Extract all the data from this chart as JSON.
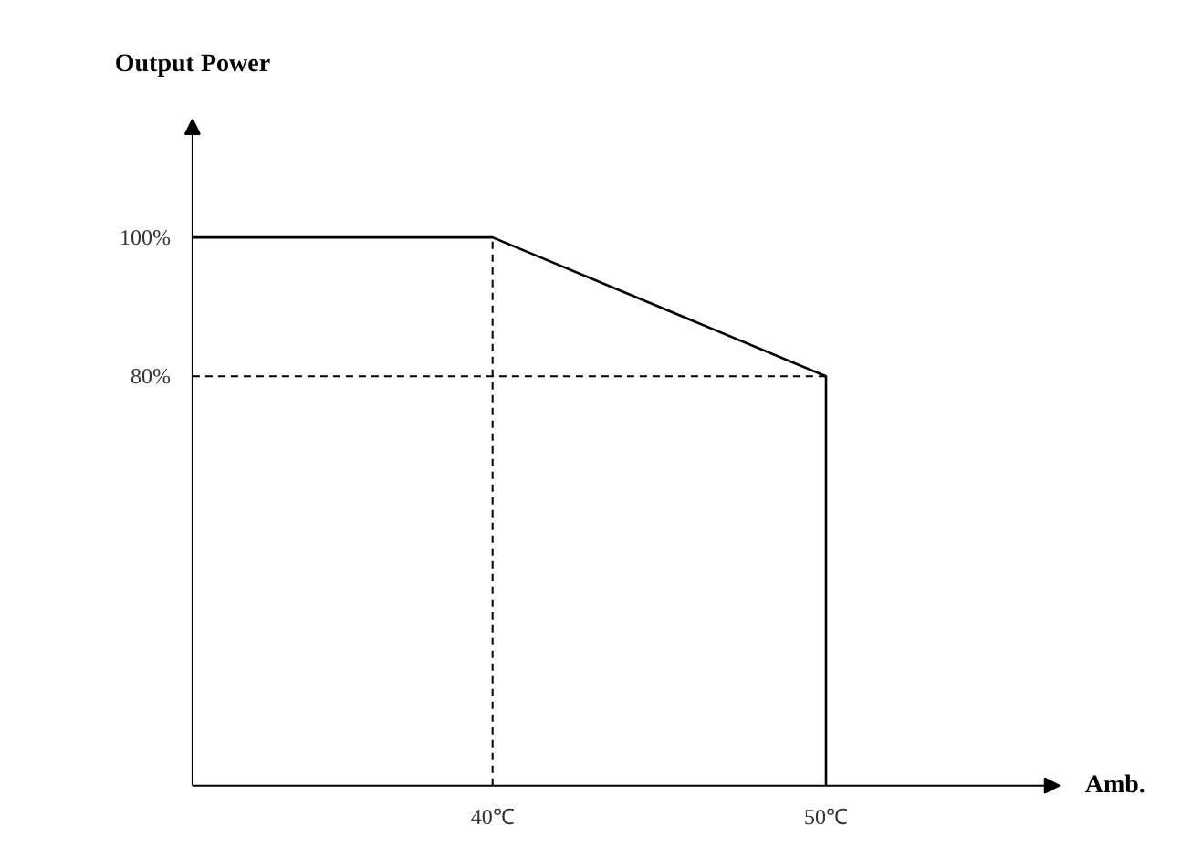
{
  "chart_data": {
    "type": "line",
    "xlabel": "Amb.",
    "ylabel": "Output Power",
    "x": [
      31,
      40,
      50,
      50
    ],
    "series": [
      {
        "color": "#000000",
        "values": [
          100,
          100,
          80,
          21
        ]
      }
    ],
    "xlim": [
      31,
      57
    ],
    "ylim": [
      21,
      117
    ],
    "xticks": [
      {
        "value": 40,
        "label": "40℃"
      },
      {
        "value": 50,
        "label": "50℃"
      }
    ],
    "yticks": [
      {
        "value": 80,
        "label": "80%"
      },
      {
        "value": 100,
        "label": "100%"
      }
    ],
    "ref_lines": [
      {
        "axis": "x",
        "value": 40,
        "color": "#000000",
        "line_style": "dashed"
      },
      {
        "axis": "y",
        "value": 80,
        "color": "#000000",
        "line_style": "dashed"
      }
    ],
    "grid": false,
    "marker": "none",
    "line_style": "solid"
  }
}
